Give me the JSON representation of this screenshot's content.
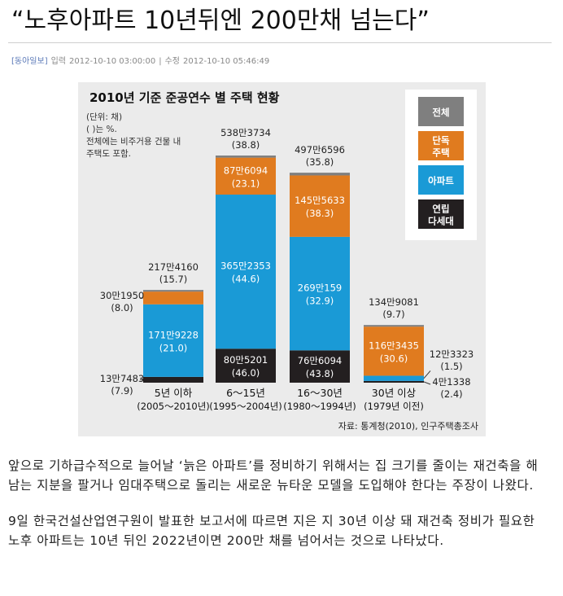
{
  "article": {
    "headline": "“노후아파트 10년뒤엔 200만채 넘는다”",
    "source": "[동아일보]",
    "input_label": "입력",
    "input_time": "2012-10-10 03:00:00",
    "sep": "|",
    "modified_label": "수정",
    "modified_time": "2012-10-10 05:46:49",
    "paragraphs": [
      "앞으로 기하급수적으로 늘어날 ‘늙은 아파트’를 정비하기 위해서는 집 크기를 줄이는 재건축을 해 남는 지분을 팔거나 임대주택으로 돌리는 새로운 뉴타운 모델을 도입해야 한다는 주장이 나왔다.",
      "9일 한국건설산업연구원이 발표한 보고서에 따르면 지은 지 30년 이상 돼 재건축 정비가 필요한 노후 아파트는 10년 뒤인 2022년이면 200만 채를 넘어서는 것으로 나타났다."
    ]
  },
  "chart_data": {
    "type": "bar",
    "stacked": true,
    "title": "2010년 기준 준공연수 별 주택 현황",
    "unit_note": [
      "(단위: 채)",
      "( )는 %.",
      "전체에는 비주거용 건물 내",
      "주택도 포함."
    ],
    "source_note": "자료: 통계청(2010), 인구주택총조사",
    "categories": [
      {
        "label": "5년 이하",
        "sub": "(2005～2010년)"
      },
      {
        "label": "6～15년",
        "sub": "(1995～2004년)"
      },
      {
        "label": "16～30년",
        "sub": "(1980～1994년)"
      },
      {
        "label": "30년 이상",
        "sub": "(1979년 이전)"
      }
    ],
    "legend": [
      {
        "name": "전체",
        "color": "#7f7f7f"
      },
      {
        "name": "단독\n주택",
        "color": "#e07b1f"
      },
      {
        "name": "아파트",
        "color": "#1a9ad6"
      },
      {
        "name": "연립\n다세대",
        "color": "#231f20"
      }
    ],
    "series": [
      {
        "name": "연립\n다세대",
        "color": "#231f20",
        "values": [
          137483,
          805201,
          766094,
          41338
        ],
        "labels": [
          "13만7483",
          "80만5201",
          "76만6094",
          "4만1338"
        ],
        "pcts": [
          "(7.9)",
          "(46.0)",
          "(43.8)",
          "(2.4)"
        ]
      },
      {
        "name": "아파트",
        "color": "#1a9ad6",
        "values": [
          1719228,
          3652353,
          2690159,
          123323
        ],
        "labels": [
          "171만9228",
          "365만2353",
          "269만159",
          "12만3323"
        ],
        "pcts": [
          "(21.0)",
          "(44.6)",
          "(32.9)",
          "(1.5)"
        ]
      },
      {
        "name": "단독\n주택",
        "color": "#e07b1f",
        "values": [
          301950,
          876094,
          1455633,
          1163435
        ],
        "labels": [
          "30만1950",
          "87만6094",
          "145만5633",
          "116만3435"
        ],
        "pcts": [
          "(8.0)",
          "(23.1)",
          "(38.3)",
          "(30.6)"
        ]
      }
    ],
    "totals": {
      "name": "전체",
      "color": "#7f7f7f",
      "values": [
        2174160,
        5383734,
        4976596,
        1349081
      ],
      "labels": [
        "217만4160",
        "538만3734",
        "497만6596",
        "134만9081"
      ],
      "pcts": [
        "(15.7)",
        "(38.8)",
        "(35.8)",
        "(9.7)"
      ]
    },
    "ylim": [
      0,
      5500000
    ],
    "grid": false,
    "legend_position": "top-right",
    "background": "#ebebeb"
  }
}
